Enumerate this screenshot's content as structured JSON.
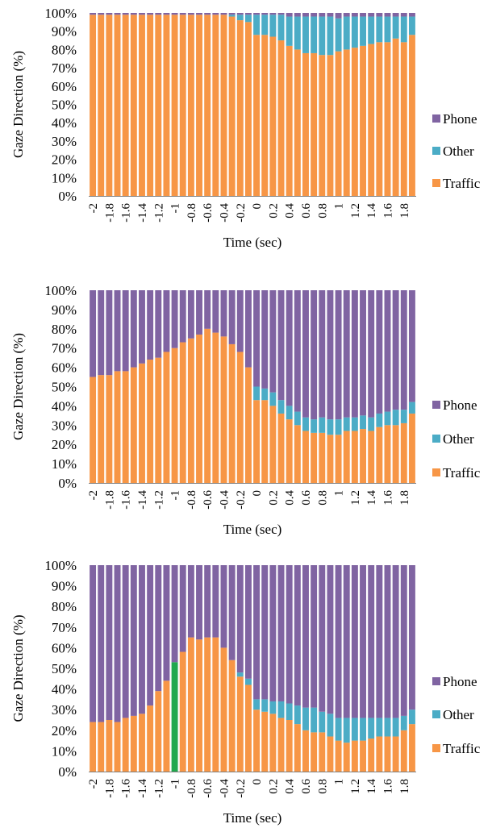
{
  "colors": {
    "Phone": "#8064A2",
    "Other": "#4BACC6",
    "Traffic": "#F79646",
    "highlight": "#21A84E"
  },
  "chart_data": [
    {
      "type": "bar",
      "stacked": true,
      "xlabel": "Time (sec)",
      "ylabel": "Gaze Direction (%)",
      "ylim": [
        0,
        100
      ],
      "yticks": [
        "0%",
        "10%",
        "20%",
        "30%",
        "40%",
        "50%",
        "60%",
        "70%",
        "80%",
        "90%",
        "100%"
      ],
      "xtick_labels": [
        "-2",
        "-1.8",
        "-1.6",
        "-1.4",
        "-1.2",
        "-1",
        "-0.8",
        "-0.6",
        "-0.4",
        "-0.2",
        "0",
        "0.2",
        "0.4",
        "0.6",
        "0.8",
        "1",
        "1.2",
        "1.4",
        "1.6",
        "1.8"
      ],
      "legend_position": "right",
      "categories": [
        -2,
        -1.9,
        -1.8,
        -1.7,
        -1.6,
        -1.5,
        -1.4,
        -1.3,
        -1.2,
        -1.1,
        -1,
        -0.9,
        -0.8,
        -0.7,
        -0.6,
        -0.5,
        -0.4,
        -0.3,
        -0.2,
        -0.1,
        0,
        0.1,
        0.2,
        0.3,
        0.4,
        0.5,
        0.6,
        0.7,
        0.8,
        0.9,
        1,
        1.1,
        1.2,
        1.3,
        1.4,
        1.5,
        1.6,
        1.7,
        1.8,
        1.9
      ],
      "series": [
        {
          "name": "Traffic",
          "values": [
            99,
            99,
            99,
            99,
            99,
            99,
            99,
            99,
            99,
            99,
            99,
            99,
            99,
            99,
            99,
            99,
            99,
            98,
            96,
            95,
            88,
            88,
            87,
            85,
            82,
            80,
            78,
            78,
            77,
            77,
            79,
            80,
            81,
            82,
            83,
            84,
            84,
            86,
            84,
            88
          ]
        },
        {
          "name": "Other",
          "values": [
            0,
            0,
            0,
            0,
            0,
            0,
            0,
            0,
            0,
            0,
            0,
            0,
            0,
            0,
            0,
            0,
            0,
            1,
            3,
            4,
            11,
            11,
            12,
            14,
            16,
            18,
            20,
            20,
            21,
            21,
            18,
            18,
            17,
            16,
            15,
            14,
            14,
            12,
            14,
            10
          ]
        },
        {
          "name": "Phone",
          "values": [
            1,
            1,
            1,
            1,
            1,
            1,
            1,
            1,
            1,
            1,
            1,
            1,
            1,
            1,
            1,
            1,
            1,
            1,
            1,
            1,
            1,
            1,
            1,
            1,
            2,
            2,
            2,
            2,
            2,
            2,
            3,
            2,
            2,
            2,
            2,
            2,
            2,
            2,
            2,
            2
          ]
        }
      ]
    },
    {
      "type": "bar",
      "stacked": true,
      "xlabel": "Time (sec)",
      "ylabel": "Gaze Direction (%)",
      "ylim": [
        0,
        100
      ],
      "yticks": [
        "0%",
        "10%",
        "20%",
        "30%",
        "40%",
        "50%",
        "60%",
        "70%",
        "80%",
        "90%",
        "100%"
      ],
      "xtick_labels": [
        "-2",
        "-1.8",
        "-1.6",
        "-1.4",
        "-1.2",
        "-1",
        "-0.8",
        "-0.6",
        "-0.4",
        "-0.2",
        "0",
        "0.2",
        "0.4",
        "0.6",
        "0.8",
        "1",
        "1.2",
        "1.4",
        "1.6",
        "1.8"
      ],
      "legend_position": "right",
      "categories": [
        -2,
        -1.9,
        -1.8,
        -1.7,
        -1.6,
        -1.5,
        -1.4,
        -1.3,
        -1.2,
        -1.1,
        -1,
        -0.9,
        -0.8,
        -0.7,
        -0.6,
        -0.5,
        -0.4,
        -0.3,
        -0.2,
        -0.1,
        0,
        0.1,
        0.2,
        0.3,
        0.4,
        0.5,
        0.6,
        0.7,
        0.8,
        0.9,
        1,
        1.1,
        1.2,
        1.3,
        1.4,
        1.5,
        1.6,
        1.7,
        1.8,
        1.9
      ],
      "series": [
        {
          "name": "Traffic",
          "values": [
            55,
            56,
            56,
            58,
            58,
            60,
            62,
            64,
            65,
            68,
            70,
            73,
            75,
            77,
            80,
            78,
            76,
            72,
            68,
            60,
            43,
            43,
            40,
            36,
            33,
            30,
            27,
            26,
            26,
            25,
            25,
            27,
            27,
            28,
            27,
            29,
            30,
            30,
            31,
            36
          ]
        },
        {
          "name": "Other",
          "values": [
            0,
            0,
            0,
            0,
            0,
            0,
            0,
            0,
            0,
            0,
            0,
            0,
            0,
            0,
            0,
            0,
            0,
            0,
            0,
            0,
            7,
            6,
            7,
            7,
            7,
            7,
            7,
            7,
            8,
            8,
            8,
            7,
            7,
            7,
            7,
            7,
            7,
            8,
            7,
            6
          ]
        },
        {
          "name": "Phone",
          "values": [
            45,
            44,
            44,
            42,
            42,
            40,
            38,
            36,
            35,
            32,
            30,
            27,
            25,
            23,
            20,
            22,
            24,
            28,
            32,
            40,
            50,
            51,
            53,
            57,
            60,
            63,
            66,
            67,
            66,
            67,
            67,
            66,
            66,
            65,
            66,
            64,
            63,
            62,
            62,
            58
          ]
        }
      ]
    },
    {
      "type": "bar",
      "stacked": true,
      "xlabel": "Time (sec)",
      "ylabel": "Gaze Direction (%)",
      "ylim": [
        0,
        100
      ],
      "yticks": [
        "0%",
        "10%",
        "20%",
        "30%",
        "40%",
        "50%",
        "60%",
        "70%",
        "80%",
        "90%",
        "100%"
      ],
      "xtick_labels": [
        "-2",
        "-1.8",
        "-1.6",
        "-1.4",
        "-1.2",
        "-1",
        "-0.8",
        "-0.6",
        "-0.4",
        "-0.2",
        "0",
        "0.2",
        "0.4",
        "0.6",
        "0.8",
        "1",
        "1.2",
        "1.4",
        "1.6",
        "1.8"
      ],
      "legend_position": "right",
      "highlight_index": 10,
      "categories": [
        -2,
        -1.9,
        -1.8,
        -1.7,
        -1.6,
        -1.5,
        -1.4,
        -1.3,
        -1.2,
        -1.1,
        -1,
        -0.9,
        -0.8,
        -0.7,
        -0.6,
        -0.5,
        -0.4,
        -0.3,
        -0.2,
        -0.1,
        0,
        0.1,
        0.2,
        0.3,
        0.4,
        0.5,
        0.6,
        0.7,
        0.8,
        0.9,
        1,
        1.1,
        1.2,
        1.3,
        1.4,
        1.5,
        1.6,
        1.7,
        1.8,
        1.9
      ],
      "series": [
        {
          "name": "Traffic",
          "values": [
            24,
            24,
            25,
            24,
            26,
            27,
            28,
            32,
            39,
            44,
            53,
            58,
            65,
            64,
            65,
            65,
            60,
            54,
            46,
            42,
            30,
            29,
            28,
            26,
            25,
            23,
            20,
            19,
            19,
            17,
            15,
            14,
            15,
            15,
            16,
            17,
            17,
            17,
            20,
            23
          ]
        },
        {
          "name": "Other",
          "values": [
            0,
            0,
            0,
            0,
            0,
            0,
            0,
            0,
            0,
            0,
            0,
            0,
            0,
            0,
            0,
            0,
            0,
            0,
            2,
            3,
            5,
            6,
            6,
            8,
            8,
            9,
            11,
            12,
            10,
            11,
            11,
            12,
            11,
            11,
            10,
            9,
            9,
            9,
            7,
            7
          ]
        },
        {
          "name": "Phone",
          "values": [
            76,
            76,
            75,
            76,
            74,
            73,
            72,
            68,
            61,
            56,
            47,
            42,
            35,
            36,
            35,
            35,
            40,
            46,
            52,
            55,
            65,
            65,
            66,
            66,
            67,
            68,
            69,
            69,
            71,
            72,
            74,
            74,
            74,
            74,
            74,
            74,
            74,
            74,
            73,
            70
          ]
        }
      ]
    }
  ]
}
